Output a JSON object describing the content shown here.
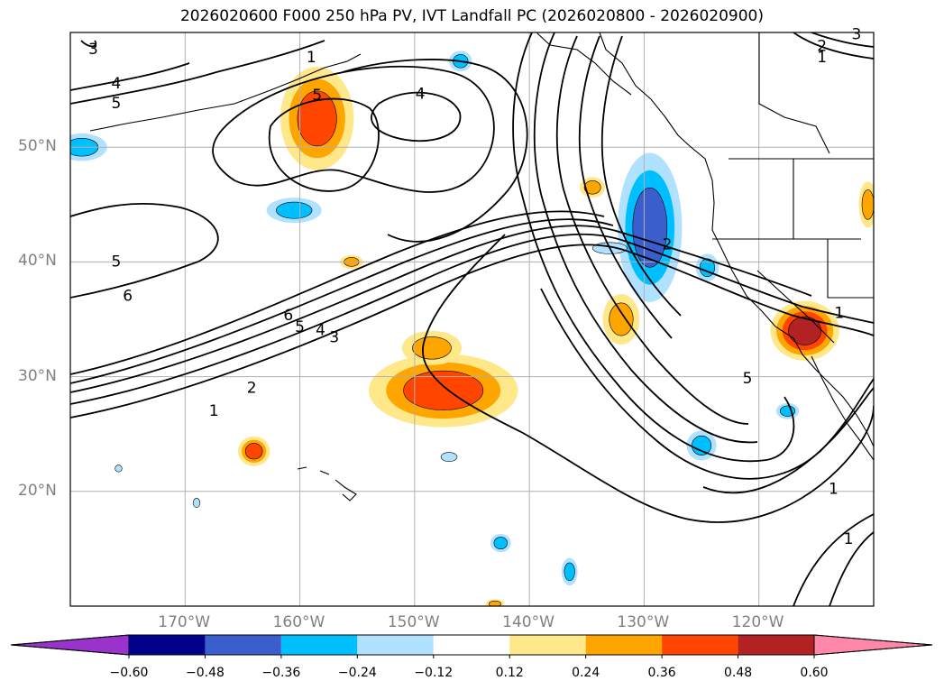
{
  "title": "2026020600 F000 250 hPa PV, IVT Landfall PC (2026020800 - 2026020900)",
  "map": {
    "lon_range": [
      -180,
      -110
    ],
    "lat_range": [
      10,
      60
    ],
    "lon_ticks": [
      {
        "lon": -170,
        "label": "170°W"
      },
      {
        "lon": -160,
        "label": "160°W"
      },
      {
        "lon": -150,
        "label": "150°W"
      },
      {
        "lon": -140,
        "label": "140°W"
      },
      {
        "lon": -130,
        "label": "130°W"
      },
      {
        "lon": -120,
        "label": "120°W"
      }
    ],
    "lat_ticks": [
      {
        "lat": 20,
        "label": "20°N"
      },
      {
        "lat": 30,
        "label": "30°N"
      },
      {
        "lat": 40,
        "label": "40°N"
      },
      {
        "lat": 50,
        "label": "50°N"
      }
    ],
    "gridlines": true,
    "contour_labels": [
      {
        "text": "3",
        "lon": -178,
        "lat": 58.5
      },
      {
        "text": "4",
        "lon": -176,
        "lat": 55.5
      },
      {
        "text": "5",
        "lon": -176,
        "lat": 53.8
      },
      {
        "text": "1",
        "lon": -159,
        "lat": 57.8
      },
      {
        "text": "5",
        "lon": -158.5,
        "lat": 54.5
      },
      {
        "text": "4",
        "lon": -149.5,
        "lat": 54.6
      },
      {
        "text": "5",
        "lon": -176,
        "lat": 40.0
      },
      {
        "text": "6",
        "lon": -175,
        "lat": 37.0
      },
      {
        "text": "6",
        "lon": -161,
        "lat": 35.3
      },
      {
        "text": "5",
        "lon": -160,
        "lat": 34.3
      },
      {
        "text": "4",
        "lon": -158.2,
        "lat": 34.0
      },
      {
        "text": "3",
        "lon": -157,
        "lat": 33.4
      },
      {
        "text": "2",
        "lon": -164.2,
        "lat": 29.0
      },
      {
        "text": "1",
        "lon": -167.5,
        "lat": 27.0
      },
      {
        "text": "2",
        "lon": -128,
        "lat": 41.5
      },
      {
        "text": "1",
        "lon": -113,
        "lat": 35.5
      },
      {
        "text": "5",
        "lon": -121,
        "lat": 29.8
      },
      {
        "text": "2",
        "lon": -114.5,
        "lat": 58.8
      },
      {
        "text": "1",
        "lon": -114.5,
        "lat": 57.8
      },
      {
        "text": "3",
        "lon": -111.5,
        "lat": 59.8
      },
      {
        "text": "1",
        "lon": -113.5,
        "lat": 20.2
      },
      {
        "text": "1",
        "lon": -112.2,
        "lat": 15.8
      }
    ],
    "anomaly_patches": [
      {
        "name": "gulf-alaska-positive",
        "lon": -158.5,
        "lat": 52.5,
        "rx": 3.2,
        "ry": 4.5,
        "level": 0.36
      },
      {
        "name": "central-pacific-positive",
        "lon": -147.5,
        "lat": 28.8,
        "rx": 6.5,
        "ry": 3.2,
        "level": 0.36
      },
      {
        "name": "central-pacific-north-positive",
        "lon": -148.5,
        "lat": 32.5,
        "rx": 2.6,
        "ry": 1.5,
        "level": 0.24
      },
      {
        "name": "socal-positive",
        "lon": -116,
        "lat": 34.0,
        "rx": 3.0,
        "ry": 2.6,
        "level": 0.48
      },
      {
        "name": "offshore-positive",
        "lon": -132,
        "lat": 35.0,
        "rx": 1.6,
        "ry": 2.2,
        "level": 0.24
      },
      {
        "name": "west-pacific-positive",
        "lon": -164,
        "lat": 23.5,
        "rx": 1.4,
        "ry": 1.3,
        "level": 0.36
      },
      {
        "name": "gulf-small-positive",
        "lon": -134.5,
        "lat": 46.5,
        "rx": 1.1,
        "ry": 0.9,
        "level": 0.24
      },
      {
        "name": "idaho-positive",
        "lon": -110.5,
        "lat": 45.0,
        "rx": 0.8,
        "ry": 2.0,
        "level": 0.24
      },
      {
        "name": "aleutian-small-positive",
        "lon": -155.5,
        "lat": 40.0,
        "rx": 1.0,
        "ry": 0.6,
        "level": 0.24
      },
      {
        "name": "pacnw-negative",
        "lon": -129.5,
        "lat": 43.0,
        "rx": 2.8,
        "ry": 6.5,
        "level": -0.48
      },
      {
        "name": "pacnw-offshore-negative",
        "lon": -133.0,
        "lat": 41.2,
        "rx": 1.5,
        "ry": 0.5,
        "level": -0.24
      },
      {
        "name": "subtropical-negative",
        "lon": -125,
        "lat": 24.0,
        "rx": 1.3,
        "ry": 1.3,
        "level": -0.36
      },
      {
        "name": "baja-negative",
        "lon": -117.5,
        "lat": 27.0,
        "rx": 1.0,
        "ry": 0.7,
        "level": -0.36
      },
      {
        "name": "aleutian-negative",
        "lon": -160.5,
        "lat": 44.5,
        "rx": 2.4,
        "ry": 1.1,
        "level": -0.36
      },
      {
        "name": "west-edge-negative",
        "lon": -179,
        "lat": 50.0,
        "rx": 2.2,
        "ry": 1.2,
        "level": -0.36
      },
      {
        "name": "north-negative",
        "lon": -146,
        "lat": 57.5,
        "rx": 1.0,
        "ry": 0.9,
        "level": -0.36
      },
      {
        "name": "south-negative-1",
        "lon": -142.5,
        "lat": 15.5,
        "rx": 0.9,
        "ry": 0.8,
        "level": -0.36
      },
      {
        "name": "south-negative-2",
        "lon": -136.5,
        "lat": 13.0,
        "rx": 0.7,
        "ry": 1.2,
        "level": -0.36
      },
      {
        "name": "bc-coast-negative",
        "lon": -124.5,
        "lat": 39.5,
        "rx": 1.0,
        "ry": 1.2,
        "level": -0.36
      },
      {
        "name": "mid-negative",
        "lon": -147,
        "lat": 23.0,
        "rx": 0.7,
        "ry": 0.4,
        "level": -0.24
      },
      {
        "name": "hawaii-west-negative",
        "lon": -175.8,
        "lat": 22.0,
        "rx": 0.3,
        "ry": 0.3,
        "level": -0.24
      },
      {
        "name": "island-negative",
        "lon": -169,
        "lat": 19.0,
        "rx": 0.3,
        "ry": 0.4,
        "level": -0.24
      },
      {
        "name": "south-edge-positive",
        "lon": -143,
        "lat": 10.2,
        "rx": 0.8,
        "ry": 0.4,
        "level": 0.24
      }
    ]
  },
  "colorbar": {
    "ticks": [
      "−0.60",
      "−0.48",
      "−0.36",
      "−0.24",
      "−0.12",
      "0.12",
      "0.24",
      "0.36",
      "0.48",
      "0.60"
    ],
    "colors": [
      "#9933cc",
      "#00008b",
      "#3a5fcd",
      "#00bfff",
      "#b0e2ff",
      "#ffffff",
      "#ffe88a",
      "#ffa500",
      "#ff4500",
      "#b22222",
      "#ff88aa"
    ]
  },
  "colors": {
    "extend_low": "#9933cc",
    "extend_high": "#ff88aa",
    "contour": "#000000",
    "grid": "#b0b0b0"
  }
}
